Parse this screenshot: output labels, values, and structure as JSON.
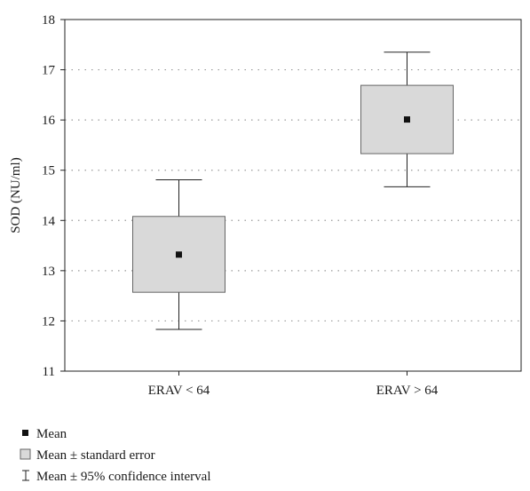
{
  "chart_data": {
    "type": "box",
    "ylabel": "SOD (NU/ml)",
    "ylim": [
      11,
      18
    ],
    "yticks": [
      11,
      12,
      13,
      14,
      15,
      16,
      17,
      18
    ],
    "grid": "horizontal-dotted",
    "categories": [
      "ERAV < 64",
      "ERAV > 64"
    ],
    "groups": [
      {
        "category": "ERAV < 64",
        "mean": 13.32,
        "se_low": 12.57,
        "se_high": 14.08,
        "ci_low": 11.83,
        "ci_high": 14.81
      },
      {
        "category": "ERAV > 64",
        "mean": 16.01,
        "se_low": 15.33,
        "se_high": 16.69,
        "ci_low": 14.67,
        "ci_high": 17.35
      }
    ],
    "legend": {
      "placement": "bottom-left",
      "entries": [
        {
          "symbol": "mean-marker",
          "label": "Mean"
        },
        {
          "symbol": "se-box",
          "label": "Mean ± standard error"
        },
        {
          "symbol": "ci-whisker",
          "label": "Mean ± 95% confidence interval"
        }
      ]
    },
    "colors": {
      "box_fill": "#d9d9d9",
      "box_stroke": "#666666",
      "marker": "#111111",
      "grid": "#9a9a9a",
      "axis": "#222222"
    }
  }
}
